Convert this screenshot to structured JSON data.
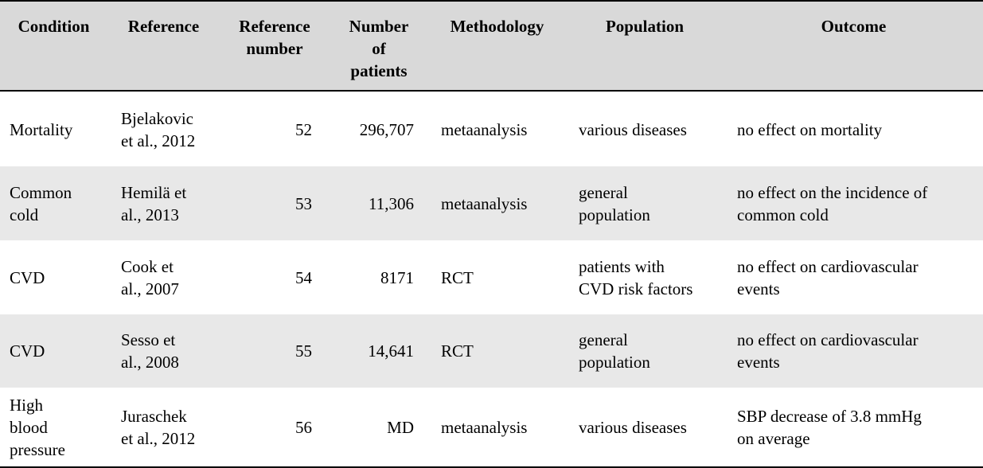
{
  "headers": {
    "condition": "Condition",
    "reference": "Reference",
    "reference_number_line1": "Reference",
    "reference_number_line2": "number",
    "patients_line1": "Number",
    "patients_line2": "of",
    "patients_line3": "patients",
    "methodology": "Methodology",
    "population": "Population",
    "outcome": "Outcome"
  },
  "rows": [
    {
      "condition": [
        "Mortality"
      ],
      "reference": [
        "Bjelakovic",
        "et al., 2012"
      ],
      "ref_num": "52",
      "patients": "296,707",
      "methodology": "metaanalysis",
      "population": [
        "various diseases"
      ],
      "outcome": [
        "no effect on mortality"
      ]
    },
    {
      "condition": [
        "Common",
        "cold"
      ],
      "reference": [
        "Hemilä et",
        "al., 2013"
      ],
      "ref_num": "53",
      "patients": "11,306",
      "methodology": "metaanalysis",
      "population": [
        "general",
        "population"
      ],
      "outcome": [
        "no effect on the incidence of",
        "common cold"
      ]
    },
    {
      "condition": [
        "CVD"
      ],
      "reference": [
        "Cook et",
        "al., 2007"
      ],
      "ref_num": "54",
      "patients": "8171",
      "methodology": "RCT",
      "population": [
        "patients with",
        "CVD risk factors"
      ],
      "outcome": [
        "no effect on cardiovascular",
        "events"
      ]
    },
    {
      "condition": [
        "CVD"
      ],
      "reference": [
        "Sesso et",
        "al., 2008"
      ],
      "ref_num": "55",
      "patients": "14,641",
      "methodology": "RCT",
      "population": [
        "general",
        "population"
      ],
      "outcome": [
        "no effect on cardiovascular",
        "events"
      ]
    },
    {
      "condition": [
        "High",
        "blood",
        "pressure"
      ],
      "reference": [
        "Juraschek",
        "et al., 2012"
      ],
      "ref_num": "56",
      "patients": "MD",
      "methodology": "metaanalysis",
      "population": [
        "various diseases"
      ],
      "outcome": [
        "SBP decrease of 3.8 mmHg",
        "on average"
      ]
    }
  ]
}
